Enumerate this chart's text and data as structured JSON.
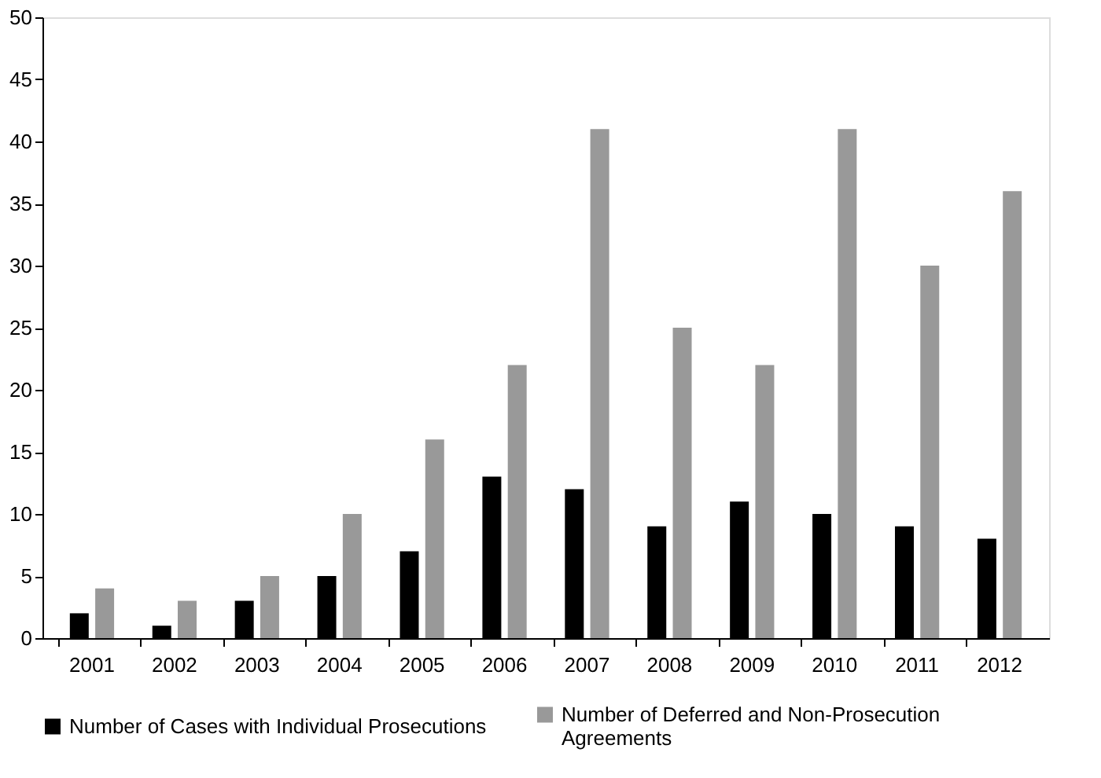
{
  "chart_data": {
    "type": "bar",
    "categories": [
      "2001",
      "2002",
      "2003",
      "2004",
      "2005",
      "2006",
      "2007",
      "2008",
      "2009",
      "2010",
      "2011",
      "2012"
    ],
    "series": [
      {
        "name": "Number of Cases with Individual Prosecutions",
        "color": "#000000",
        "values": [
          2,
          1,
          3,
          5,
          7,
          13,
          12,
          9,
          11,
          10,
          9,
          8
        ]
      },
      {
        "name": "Number of Deferred and Non-Prosecution Agreements",
        "color": "#999999",
        "values": [
          4,
          3,
          5,
          10,
          16,
          22,
          41,
          25,
          22,
          41,
          30,
          36
        ]
      }
    ],
    "ylim": [
      0,
      50
    ],
    "yticks": [
      0,
      5,
      10,
      15,
      20,
      25,
      30,
      35,
      40,
      45,
      50
    ],
    "grid": false,
    "legend": "bottom"
  }
}
